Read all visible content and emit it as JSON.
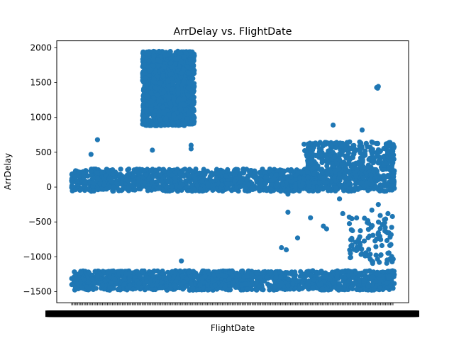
{
  "chart_data": {
    "type": "scatter",
    "title": "ArrDelay vs. FlightDate",
    "xlabel": "FlightDate",
    "ylabel": "ArrDelay",
    "ylim": [
      -1660,
      2100
    ],
    "yticks": [
      -1500,
      -1000,
      -500,
      0,
      500,
      1000,
      1500,
      2000
    ],
    "ytick_labels": [
      "−1500",
      "−1000",
      "−500",
      "0",
      "500",
      "1000",
      "1500",
      "2000"
    ],
    "xlim": [
      0,
      1
    ],
    "x_tick_labels_note": "dense overlapping date tick labels (illegible)",
    "grid": false,
    "legend": "none",
    "marker_color": "#1f77b4",
    "point_clusters": [
      {
        "x": [
          0.0,
          1.0
        ],
        "y": [
          -60,
          260
        ],
        "density": "dense"
      },
      {
        "x": [
          0.72,
          1.0
        ],
        "y": [
          250,
          650
        ],
        "density": "medium"
      },
      {
        "x": [
          0.22,
          0.38
        ],
        "y": [
          880,
          1950
        ],
        "density": "dense"
      },
      {
        "x": [
          0.0,
          1.0
        ],
        "y": [
          -1480,
          -1200
        ],
        "density": "dense"
      },
      {
        "x": [
          0.86,
          1.0
        ],
        "y": [
          -1100,
          -400
        ],
        "density": "sparse"
      }
    ],
    "points": [
      {
        "x": 0.945,
        "y": 1430
      },
      {
        "x": 0.95,
        "y": 1445
      },
      {
        "x": 0.948,
        "y": 1420
      },
      {
        "x": 0.08,
        "y": 680
      },
      {
        "x": 0.06,
        "y": 470
      },
      {
        "x": 0.25,
        "y": 530
      },
      {
        "x": 0.37,
        "y": 600
      },
      {
        "x": 0.37,
        "y": 550
      },
      {
        "x": 0.81,
        "y": 890
      },
      {
        "x": 0.9,
        "y": 820
      },
      {
        "x": 0.67,
        "y": -360
      },
      {
        "x": 0.67,
        "y": -100
      },
      {
        "x": 0.74,
        "y": -440
      },
      {
        "x": 0.65,
        "y": -870
      },
      {
        "x": 0.665,
        "y": -900
      },
      {
        "x": 0.7,
        "y": -730
      },
      {
        "x": 0.78,
        "y": -560
      },
      {
        "x": 0.79,
        "y": -600
      },
      {
        "x": 0.84,
        "y": -380
      },
      {
        "x": 0.86,
        "y": -430
      },
      {
        "x": 0.83,
        "y": -170
      },
      {
        "x": 0.93,
        "y": -330
      },
      {
        "x": 0.92,
        "y": -520
      },
      {
        "x": 0.97,
        "y": -510
      },
      {
        "x": 0.98,
        "y": -380
      },
      {
        "x": 0.95,
        "y": -250
      },
      {
        "x": 0.34,
        "y": -1060
      },
      {
        "x": 0.18,
        "y": -1280
      }
    ]
  }
}
